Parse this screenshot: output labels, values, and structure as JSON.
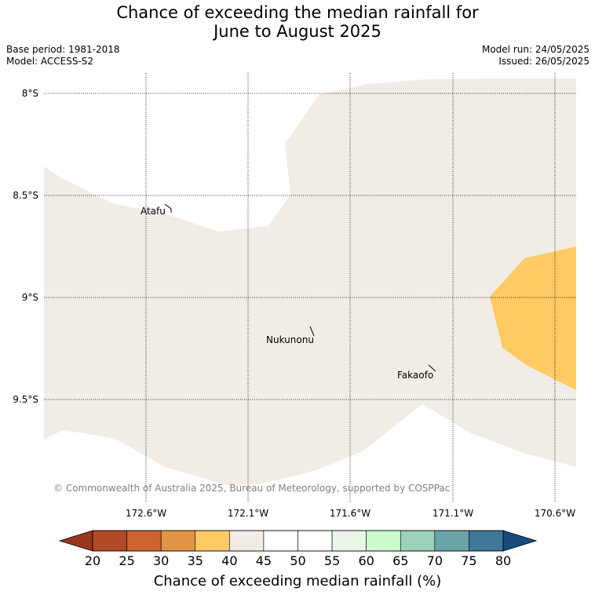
{
  "title": {
    "line1": "Chance of exceeding the median rainfall for",
    "line2": "June to August 2025"
  },
  "meta": {
    "base_period": "Base period: 1981-2018",
    "model": "Model: ACCESS-S2",
    "model_run": "Model run: 24/05/2025",
    "issued": "Issued: 26/05/2025"
  },
  "map": {
    "lat_labels": [
      "8°S",
      "8.5°S",
      "9°S",
      "9.5°S"
    ],
    "lon_labels": [
      "172.6°W",
      "172.1°W",
      "171.6°W",
      "171.1°W",
      "170.6°W"
    ],
    "places": [
      "Atafu",
      "Nukunonu",
      "Fakaofo"
    ],
    "copyright": "© Commonwealth of Australia 2025, Bureau of Meteorology, supported by COSPPac",
    "colors": {
      "land_background": "#f1ece6",
      "probability_35_40": "#fdca64",
      "gridline": "#000000"
    }
  },
  "colorbar": {
    "ticks": [
      "20",
      "25",
      "30",
      "35",
      "40",
      "45",
      "50",
      "55",
      "60",
      "65",
      "70",
      "75",
      "80"
    ],
    "colors": [
      "#983620",
      "#b24a25",
      "#cc6432",
      "#e19445",
      "#fdca64",
      "#f1ece6",
      "#ffffff",
      "#ffffff",
      "#e9f6e7",
      "#ccfccc",
      "#9dd1b9",
      "#6aa3a8",
      "#3e7798",
      "#164c7c"
    ],
    "label": "Chance of exceeding median rainfall (%)"
  }
}
